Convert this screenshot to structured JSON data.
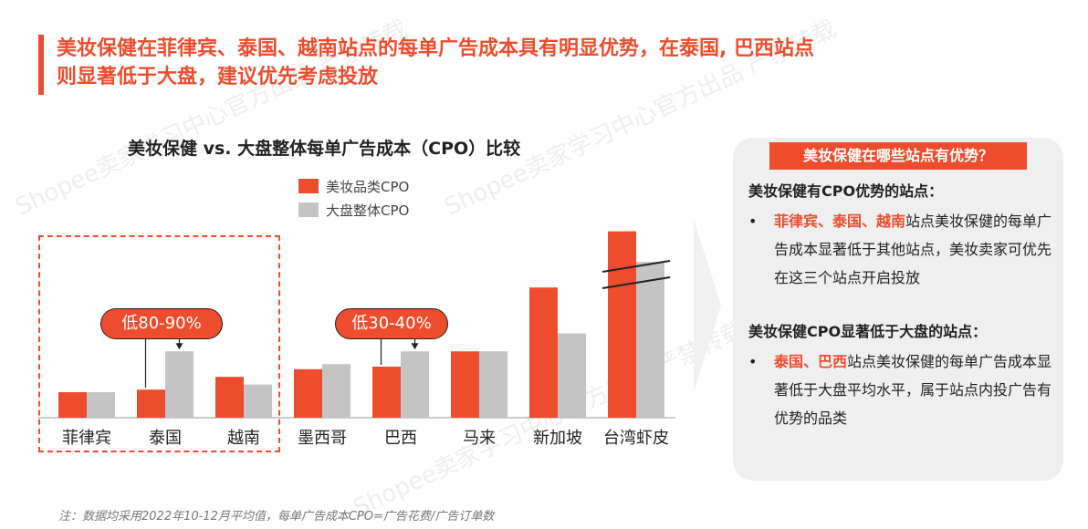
{
  "title": {
    "line1": "美妆保健在菲律宾、泰国、越南站点的每单广告成本具有明显优势，在泰国, 巴西站点",
    "line2": "则显著低于大盘，建议优先考虑投放"
  },
  "chart_data": {
    "type": "bar",
    "title": "美妆保健 vs. 大盘整体每单广告成本（CPO）比较",
    "categories": [
      "菲律宾",
      "泰国",
      "越南",
      "墨西哥",
      "巴西",
      "马来",
      "新加坡",
      "台湾虾皮"
    ],
    "series": [
      {
        "name": "美妆品类CPO",
        "values": [
          1.0,
          1.1,
          1.6,
          1.9,
          2.0,
          2.6,
          5.1,
          7.3
        ]
      },
      {
        "name": "大盘整体CPO",
        "values": [
          1.0,
          2.6,
          1.3,
          2.1,
          2.6,
          2.6,
          3.3,
          6.1
        ]
      }
    ],
    "axis_break": "台湾虾皮",
    "colors": {
      "beauty": "#ee4d2d",
      "overall": "#c4c4c4"
    },
    "legend_position": "top",
    "grid": false,
    "annotations": [
      {
        "text": "低80-90%"
      },
      {
        "text": "低30-40%"
      }
    ]
  },
  "panel": {
    "header": "美妆保健在哪些站点有优势？",
    "sec1_title": "美妆保健有CPO优势的站点：",
    "sec1_bullet": "•",
    "sec1_highlight": "菲律宾、泰国、越南",
    "sec1_text": "站点美妆保健的每单广告成本显著低于其他站点，美妆卖家可优先在这三个站点开启投放",
    "sec2_title": "美妆保健CPO显著低于大盘的站点：",
    "sec2_bullet": "•",
    "sec2_highlight": "泰国、巴西",
    "sec2_text": "站点美妆保健的每单广告成本显著低于大盘平均水平，属于站点内投广告有优势的品类"
  },
  "note": "注：数据均采用2022年10-12月平均值，每单广告成本CPO=广告花费/广告订单数",
  "watermark": "Shopee卖家学习中心官方出品 严禁转载"
}
